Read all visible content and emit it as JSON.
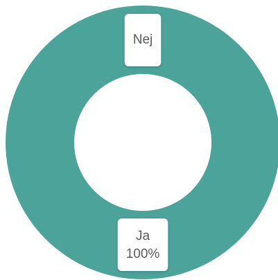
{
  "chart_data": {
    "type": "donut",
    "categories": [
      "Nej",
      "Ja"
    ],
    "values": [
      0,
      100
    ],
    "value_labels": [
      null,
      "100%"
    ],
    "color": "#4ba39a"
  }
}
